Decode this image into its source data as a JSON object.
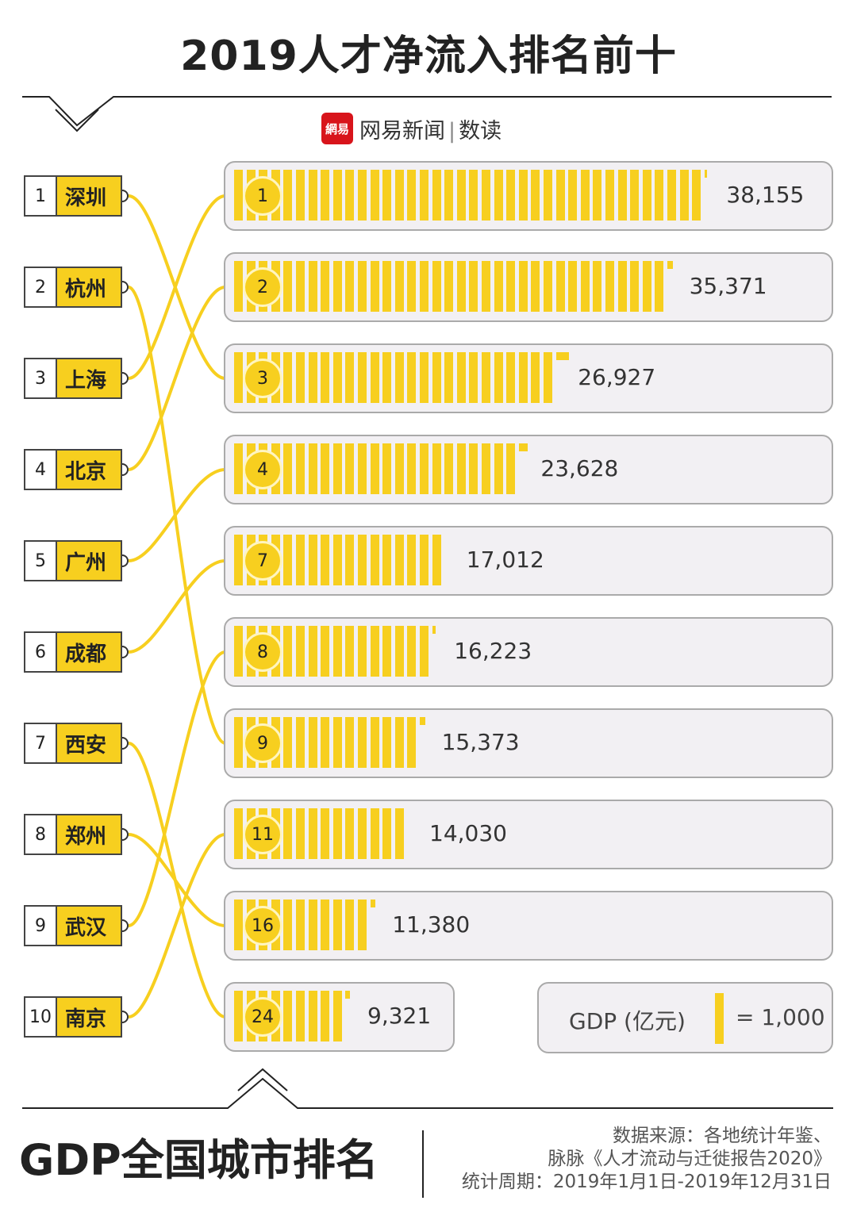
{
  "title": "2019人才净流入排名前十",
  "brand": {
    "icon_text": "網易",
    "name": "网易新闻",
    "section": "数读",
    "color": "#d8141b"
  },
  "accent_color": "#f7cf1f",
  "chart_data": {
    "type": "bar",
    "title": "2019人才净流入排名前十",
    "talent_rank": [
      1,
      2,
      3,
      4,
      5,
      6,
      7,
      8,
      9,
      10
    ],
    "cities": [
      "深圳",
      "杭州",
      "上海",
      "北京",
      "广州",
      "成都",
      "西安",
      "郑州",
      "武汉",
      "南京"
    ],
    "gdp_rows": [
      {
        "gdp_rank": "1",
        "gdp": "38,155",
        "value": 38155,
        "city_index": 2
      },
      {
        "gdp_rank": "2",
        "gdp": "35,371",
        "value": 35371,
        "city_index": 3
      },
      {
        "gdp_rank": "3",
        "gdp": "26,927",
        "value": 26927,
        "city_index": 0
      },
      {
        "gdp_rank": "4",
        "gdp": "23,628",
        "value": 23628,
        "city_index": 4
      },
      {
        "gdp_rank": "7",
        "gdp": "17,012",
        "value": 17012,
        "city_index": 5
      },
      {
        "gdp_rank": "8",
        "gdp": "16,223",
        "value": 16223,
        "city_index": 8
      },
      {
        "gdp_rank": "9",
        "gdp": "15,373",
        "value": 15373,
        "city_index": 1
      },
      {
        "gdp_rank": "11",
        "gdp": "14,030",
        "value": 14030,
        "city_index": 9
      },
      {
        "gdp_rank": "16",
        "gdp": "11,380",
        "value": 11380,
        "city_index": 7
      },
      {
        "gdp_rank": "24",
        "gdp": "9,321",
        "value": 9321,
        "city_index": 6
      }
    ],
    "legend": {
      "label": "GDP (亿元)",
      "unit_text": "= 1,000",
      "unit_value": 1000
    }
  },
  "footer": {
    "title": "GDP全国城市排名",
    "source_line1": "数据来源：各地统计年鉴、",
    "source_line2": "脉脉《人才流动与迁徙报告2020》",
    "period": "统计周期：2019年1月1日-2019年12月31日"
  }
}
